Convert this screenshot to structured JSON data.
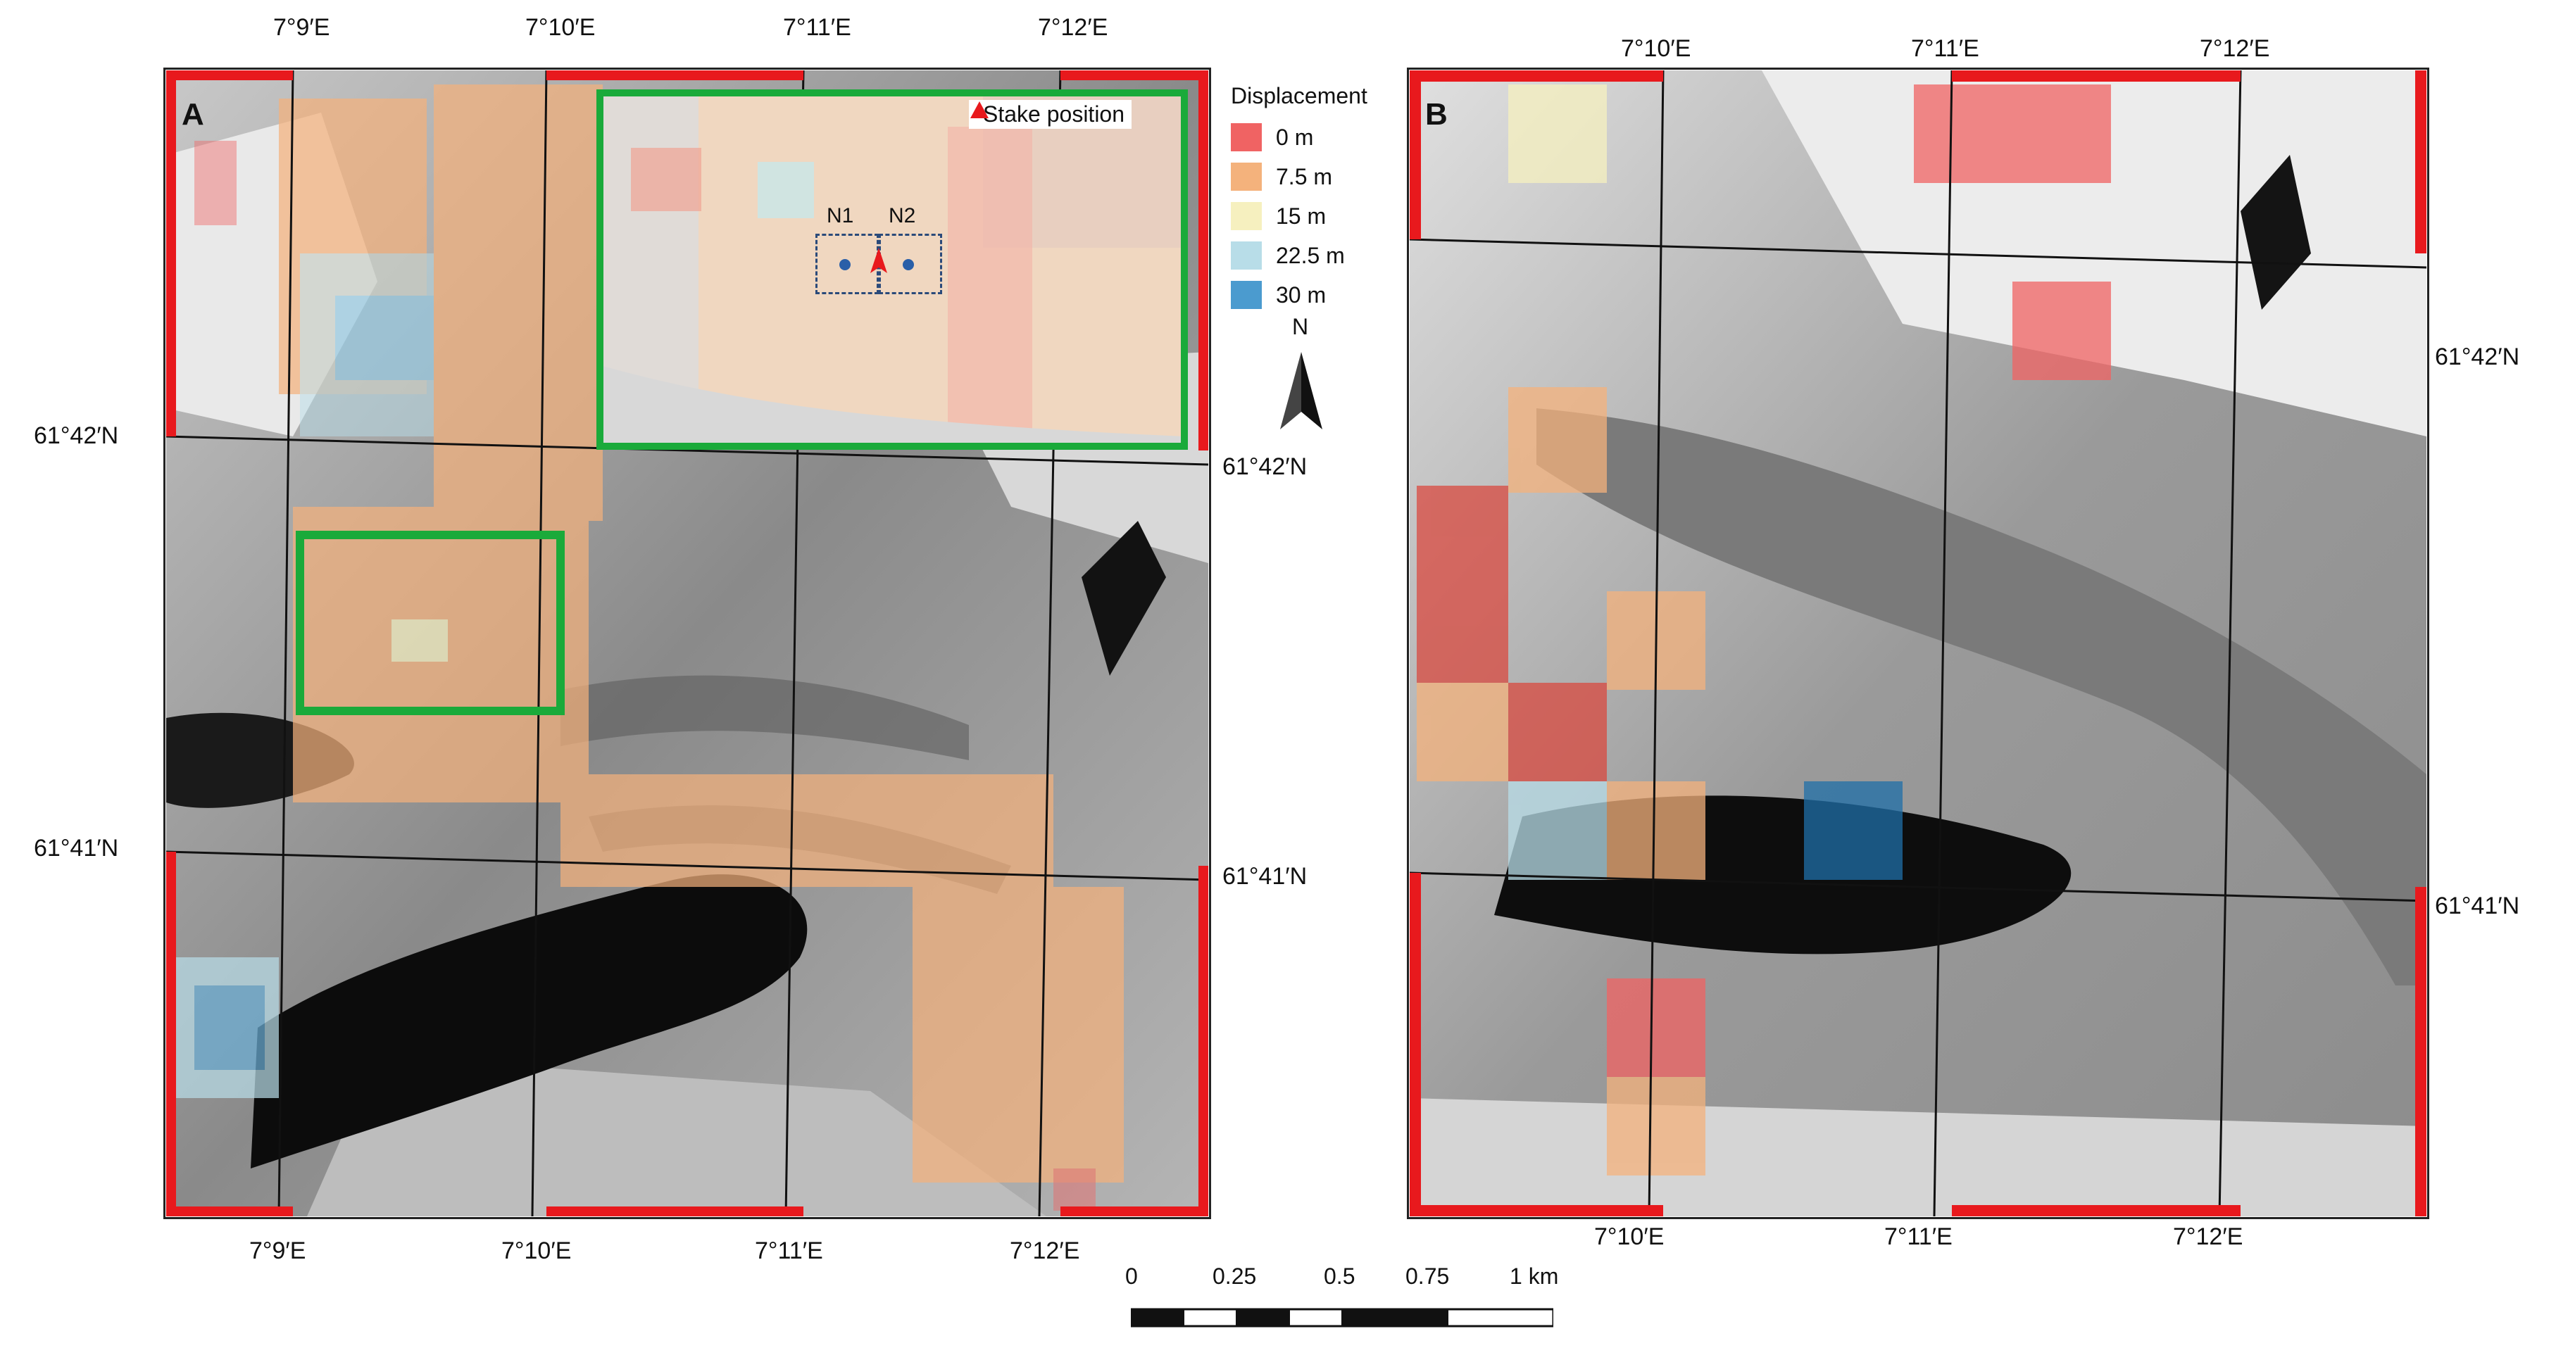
{
  "legend": {
    "title": "Displacement",
    "items": [
      {
        "label": "0 m",
        "color": "#f06363"
      },
      {
        "label": "7.5 m",
        "color": "#f4b27c"
      },
      {
        "label": "15 m",
        "color": "#f6f0bf"
      },
      {
        "label": "22.5 m",
        "color": "#b8dde8"
      },
      {
        "label": "30 m",
        "color": "#4b9bcf"
      }
    ]
  },
  "north_arrow": {
    "label": "N",
    "icon": "north-arrow-icon"
  },
  "scale_bar": {
    "ticks": [
      "0",
      "0.25",
      "0.5",
      "0.75",
      "1 km"
    ]
  },
  "panel_a": {
    "label": "A",
    "top_lon_labels": [
      "7°9′E",
      "7°10′E",
      "7°11′E",
      "7°12′E"
    ],
    "bottom_lon_labels": [
      "7°9′E",
      "7°10′E",
      "7°11′E",
      "7°12′E"
    ],
    "left_lat_labels": [
      "61°42′N",
      "61°41′N"
    ],
    "right_lat_labels": [
      "61°42′N",
      "61°41′N"
    ],
    "inset": {
      "stake_label": "Stake position",
      "n1_label": "N1",
      "n2_label": "N2"
    }
  },
  "panel_b": {
    "label": "B",
    "top_lon_labels": [
      "7°10′E",
      "7°11′E",
      "7°12′E"
    ],
    "bottom_lon_labels": [
      "7°10′E",
      "7°11′E",
      "7°12′E"
    ],
    "right_lat_labels": [
      "61°42′N",
      "61°41′N"
    ]
  },
  "colors": {
    "highlight_box": "#1aaa3a",
    "border_red": "#e8191d",
    "stake_marker": "#e8191d",
    "sample_point": "#2a5fa8"
  }
}
